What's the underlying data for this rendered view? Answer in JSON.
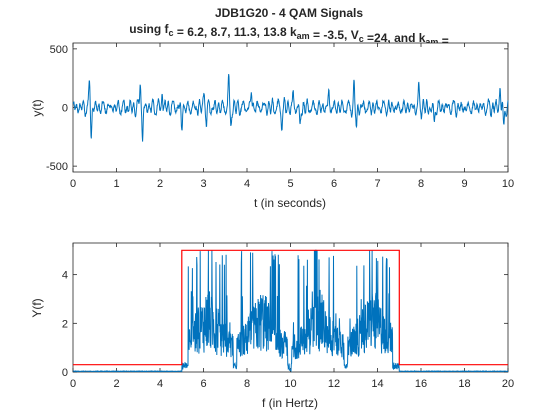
{
  "figure": {
    "title_line1": "JDB1G20 - 4 QAM Signals",
    "title_line2_parts": [
      {
        "t": "using f"
      },
      {
        "t": "c",
        "sub": true
      },
      {
        "t": " = 6.2, 8.7, 11.3, 13.8 k"
      },
      {
        "t": "am",
        "sub": true
      },
      {
        "t": " = -3.5, V"
      },
      {
        "t": "c",
        "sub": true
      },
      {
        "t": " =24, and k"
      },
      {
        "t": "am",
        "sub": true
      },
      {
        "t": " ="
      }
    ]
  },
  "colors": {
    "signal": "#0072BD",
    "envelope": "#FF0000",
    "axis": "#262626"
  },
  "chart_data": [
    {
      "type": "line",
      "xlabel": "t (in seconds)",
      "ylabel": "y(t)",
      "xlim": [
        0,
        10
      ],
      "ylim": [
        -550,
        550
      ],
      "xticks": [
        0,
        1,
        2,
        3,
        4,
        5,
        6,
        7,
        8,
        9,
        10
      ],
      "yticks": [
        -500,
        0,
        500
      ],
      "grid": false,
      "series": [
        {
          "description": "time-domain sum of 4 QAM carriers (noise-like, mostly within +/-100 with spikes)",
          "peaks": [
            {
              "x": 0.38,
              "y": 200
            },
            {
              "x": 0.42,
              "y": -210
            },
            {
              "x": 1.55,
              "y": 250
            },
            {
              "x": 1.6,
              "y": -320
            },
            {
              "x": 2.05,
              "y": 130
            },
            {
              "x": 2.5,
              "y": -170
            },
            {
              "x": 3.02,
              "y": 160
            },
            {
              "x": 3.07,
              "y": -170
            },
            {
              "x": 3.58,
              "y": 265
            },
            {
              "x": 3.63,
              "y": -170
            },
            {
              "x": 4.1,
              "y": 150
            },
            {
              "x": 4.8,
              "y": -160
            },
            {
              "x": 5.06,
              "y": 125
            },
            {
              "x": 5.22,
              "y": -180
            },
            {
              "x": 5.88,
              "y": 130
            },
            {
              "x": 6.46,
              "y": 150
            },
            {
              "x": 6.52,
              "y": -170
            },
            {
              "x": 7.95,
              "y": 150
            },
            {
              "x": 8.3,
              "y": -140
            },
            {
              "x": 9.82,
              "y": 190
            },
            {
              "x": 9.9,
              "y": -200
            }
          ]
        }
      ]
    },
    {
      "type": "line",
      "xlabel": "f (in Hertz)",
      "ylabel": "Y(f)",
      "xlim": [
        0,
        20
      ],
      "ylim": [
        0,
        5.3
      ],
      "xticks": [
        0,
        2,
        4,
        6,
        8,
        10,
        12,
        14,
        16,
        18,
        20
      ],
      "yticks": [
        0,
        2,
        4
      ],
      "grid": false,
      "series": [
        {
          "description": "magnitude spectrum: four lobes centred near the carrier frequencies",
          "lobe_centers": [
            6.2,
            8.7,
            11.3,
            13.8
          ],
          "lobe_peak": 5.0,
          "band": [
            5.0,
            15.0
          ]
        },
        {
          "description": "rectangular mask",
          "x": [
            0,
            5,
            5,
            15,
            15,
            20
          ],
          "y": [
            0.3,
            0.3,
            5.0,
            5.0,
            0.3,
            0.3
          ]
        }
      ]
    }
  ]
}
